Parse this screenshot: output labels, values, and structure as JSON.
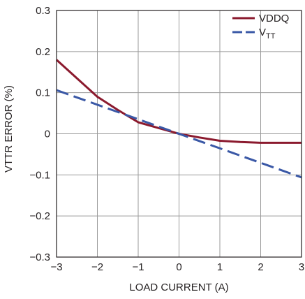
{
  "chart_data": {
    "type": "line",
    "xlabel": "LOAD CURRENT (A)",
    "ylabel": "VTTR ERROR (%)",
    "xlim": [
      -3,
      3
    ],
    "ylim": [
      -0.3,
      0.3
    ],
    "x_ticks": [
      -3,
      -2,
      -1,
      0,
      1,
      2,
      3
    ],
    "y_ticks": [
      0.3,
      0.2,
      0.1,
      0,
      -0.1,
      -0.2,
      -0.3
    ],
    "x_tick_labels": [
      "−3",
      "−2",
      "−1",
      "0",
      "1",
      "2",
      "3"
    ],
    "y_tick_labels": [
      "0.3",
      "0.2",
      "0.1",
      "0",
      "−0.1",
      "−0.2",
      "−0.3"
    ],
    "grid": true,
    "legend_position": "top-right",
    "series": [
      {
        "name": "VDDQ",
        "color": "#8b1a2e",
        "style": "solid",
        "x": [
          -3,
          -2.5,
          -2,
          -1.5,
          -1,
          -0.5,
          0,
          0.5,
          1,
          1.5,
          2,
          2.5,
          3
        ],
        "y": [
          0.18,
          0.135,
          0.09,
          0.058,
          0.028,
          0.014,
          0.0,
          -0.009,
          -0.017,
          -0.02,
          -0.022,
          -0.022,
          -0.022
        ]
      },
      {
        "name": "VTT",
        "name_main": "V",
        "name_sub": "TT",
        "color": "#3a58a6",
        "style": "dashed",
        "x": [
          -3,
          3
        ],
        "y": [
          0.106,
          -0.106
        ]
      }
    ]
  }
}
